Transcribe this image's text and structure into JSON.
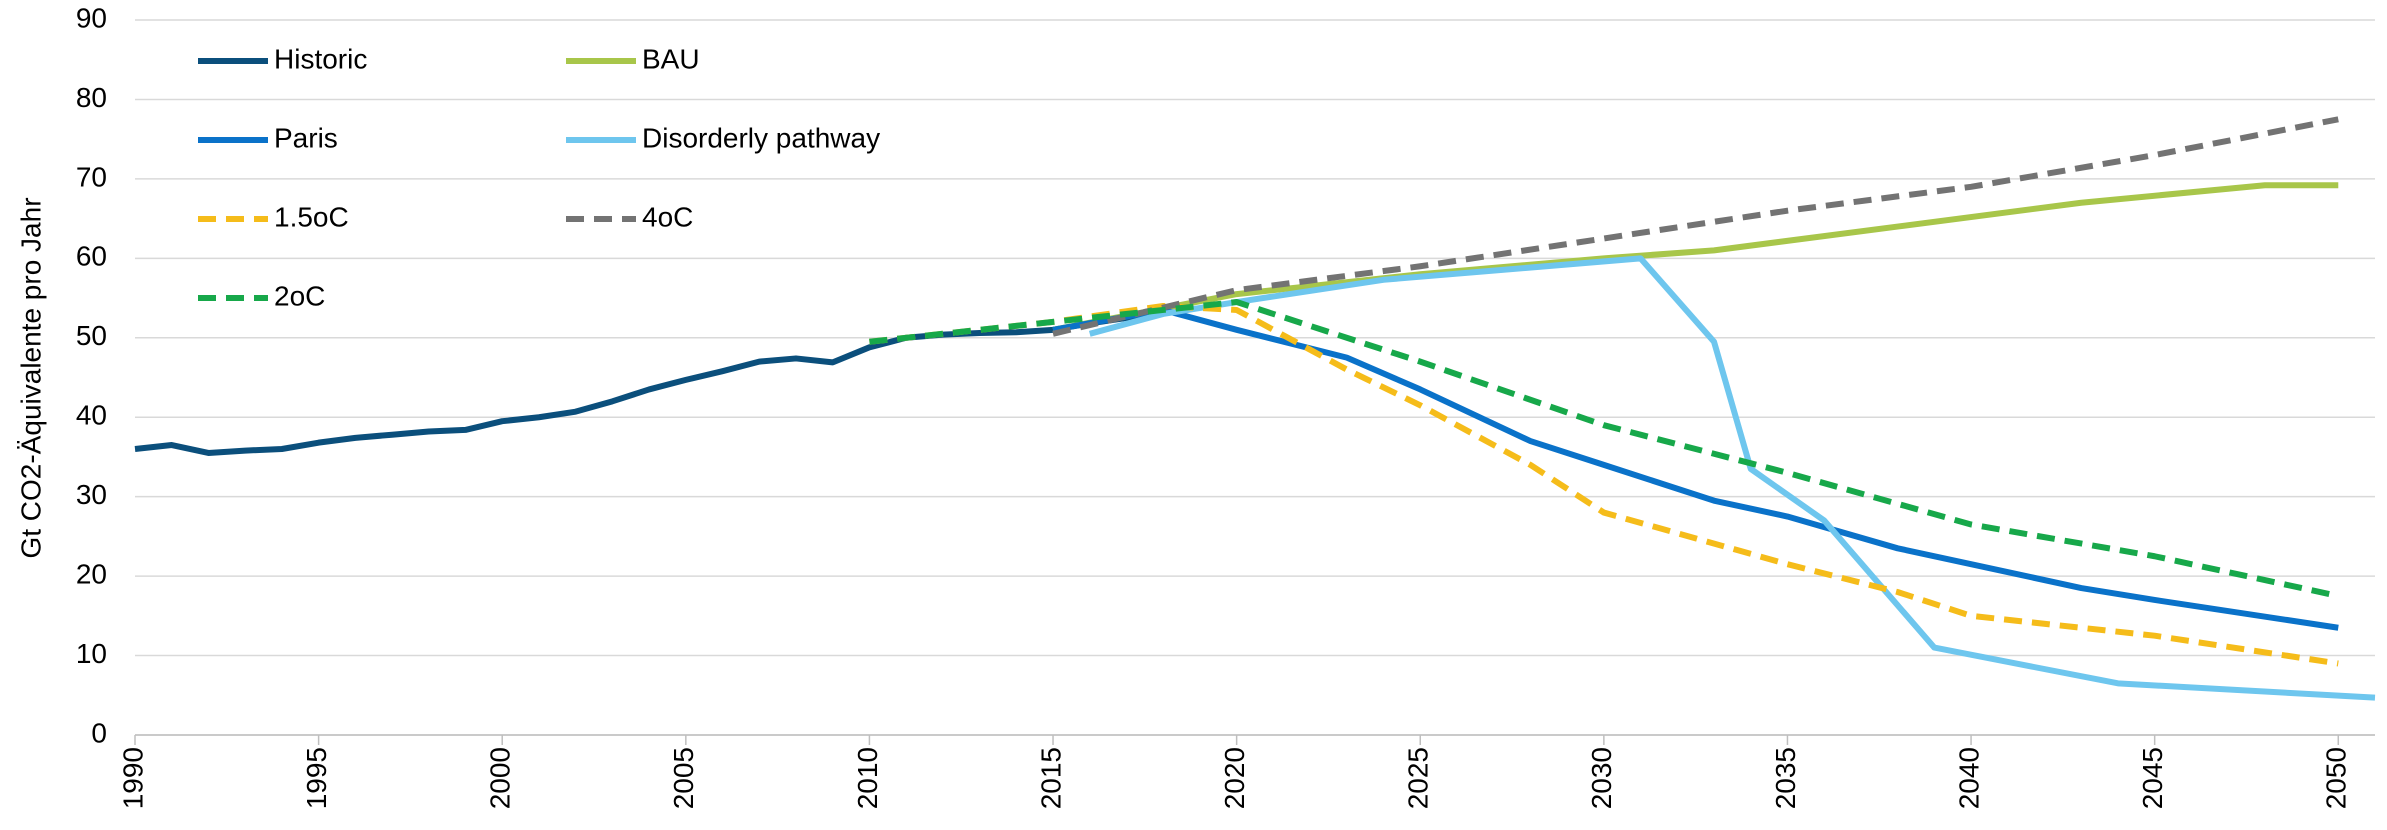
{
  "chart_data": {
    "type": "line",
    "ylabel": "Gt CO2-Äquivalente pro Jahr",
    "xlim": [
      1990,
      2051
    ],
    "xticks": [
      1990,
      1995,
      2000,
      2005,
      2010,
      2015,
      2020,
      2025,
      2030,
      2035,
      2040,
      2045,
      2050
    ],
    "ylim": [
      0,
      90
    ],
    "yticks": [
      0,
      10,
      20,
      30,
      40,
      50,
      60,
      70,
      80,
      90
    ],
    "grid": true,
    "series": [
      {
        "name": "Historic",
        "color": "#0b4f7c",
        "dashed": false,
        "x": [
          1990,
          1991,
          1992,
          1993,
          1994,
          1995,
          1996,
          1997,
          1998,
          1999,
          2000,
          2001,
          2002,
          2003,
          2004,
          2005,
          2006,
          2007,
          2008,
          2009,
          2010,
          2011,
          2012,
          2013,
          2014,
          2015,
          2016,
          2017,
          2018
        ],
        "values": [
          36,
          36.5,
          35.5,
          35.8,
          36,
          36.8,
          37.4,
          37.8,
          38.2,
          38.4,
          39.5,
          40,
          40.7,
          42,
          43.5,
          44.7,
          45.8,
          47,
          47.4,
          46.9,
          48.8,
          50,
          50.4,
          50.6,
          50.7,
          51,
          51.8,
          52.5,
          53.3
        ]
      },
      {
        "name": "BAU",
        "color": "#a8c64a",
        "dashed": false,
        "x": [
          2015,
          2020,
          2025,
          2030,
          2033,
          2038,
          2043,
          2048,
          2050
        ],
        "values": [
          51,
          55.5,
          58,
          60,
          61,
          64,
          67,
          69.2,
          69.2
        ]
      },
      {
        "name": "Paris",
        "color": "#0a72c9",
        "dashed": false,
        "x": [
          2015,
          2018,
          2020,
          2023,
          2025,
          2028,
          2030,
          2033,
          2035,
          2038,
          2040,
          2043,
          2045,
          2050
        ],
        "values": [
          51,
          53.5,
          51,
          47.5,
          43.5,
          37,
          34,
          29.5,
          27.5,
          23.5,
          21.5,
          18.5,
          17,
          13.5
        ]
      },
      {
        "name": "Disorderly pathway",
        "color": "#6ec6ee",
        "dashed": false,
        "x": [
          2016,
          2018,
          2020,
          2024,
          2031,
          2033,
          2034,
          2036,
          2039,
          2044,
          2051
        ],
        "values": [
          50.5,
          53,
          54.5,
          57.3,
          60,
          49.5,
          33.5,
          27,
          11,
          6.5,
          4.7
        ]
      },
      {
        "name": "1.5oC",
        "color": "#f5bc1a",
        "dashed": true,
        "x": [
          2010,
          2015,
          2018,
          2020,
          2023,
          2025,
          2028,
          2030,
          2035,
          2038,
          2040,
          2045,
          2050
        ],
        "values": [
          49.5,
          52,
          54,
          53.5,
          46,
          41.5,
          34,
          28,
          21.5,
          18,
          15,
          12.5,
          9
        ]
      },
      {
        "name": "4oC",
        "color": "#737373",
        "dashed": true,
        "x": [
          2015,
          2020,
          2025,
          2030,
          2035,
          2040,
          2045,
          2050
        ],
        "values": [
          50.5,
          56,
          59,
          62.5,
          66,
          69,
          73,
          77.5
        ]
      },
      {
        "name": "2oC",
        "color": "#17a84a",
        "dashed": true,
        "x": [
          2010,
          2015,
          2020,
          2025,
          2030,
          2035,
          2040,
          2045,
          2050
        ],
        "values": [
          49.5,
          52,
          54.5,
          47,
          39,
          33,
          26.5,
          22.5,
          17.5
        ]
      }
    ]
  }
}
